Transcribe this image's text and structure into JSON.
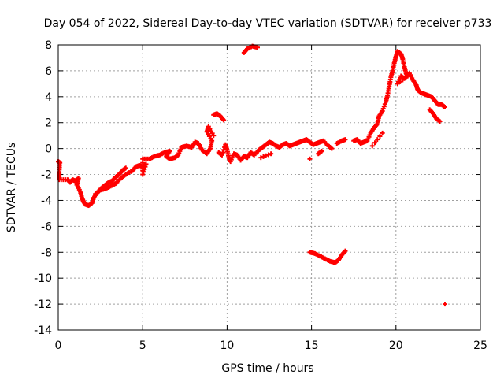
{
  "chart_data": {
    "type": "scatter",
    "title": "Day 054 of 2022, Sidereal Day-to-day VTEC variation (SDTVAR) for receiver p733",
    "xlabel": "GPS time / hours",
    "ylabel": "SDTVAR / TECUs",
    "xlim": [
      0,
      25
    ],
    "ylim": [
      -14,
      8
    ],
    "xticks": [
      0,
      5,
      10,
      15,
      20,
      25
    ],
    "yticks": [
      -14,
      -12,
      -10,
      -8,
      -6,
      -4,
      -2,
      0,
      2,
      4,
      6,
      8
    ],
    "grid": true,
    "marker": "plus",
    "colors": {
      "series": "#ff0000",
      "grid": "#a0a0a0",
      "axis": "#000000"
    },
    "series": [
      {
        "name": "SDTVAR",
        "points": [
          [
            0.0,
            -1.0
          ],
          [
            0.1,
            -1.1
          ],
          [
            0.05,
            -1.8
          ],
          [
            0.05,
            -2.2
          ],
          [
            0.05,
            -2.4
          ],
          [
            0.55,
            -2.4
          ],
          [
            0.7,
            -2.6
          ],
          [
            0.85,
            -2.4
          ],
          [
            1.0,
            -2.5
          ],
          [
            1.2,
            -2.3
          ],
          [
            1.1,
            -2.8
          ],
          [
            1.3,
            -3.3
          ],
          [
            1.4,
            -3.8
          ],
          [
            1.5,
            -4.1
          ],
          [
            1.6,
            -4.3
          ],
          [
            1.8,
            -4.4
          ],
          [
            2.0,
            -4.2
          ],
          [
            2.1,
            -3.8
          ],
          [
            2.3,
            -3.4
          ],
          [
            2.6,
            -3.0
          ],
          [
            2.8,
            -2.8
          ],
          [
            3.0,
            -2.6
          ],
          [
            3.2,
            -2.5
          ],
          [
            3.4,
            -2.2
          ],
          [
            3.6,
            -2.0
          ],
          [
            3.8,
            -1.7
          ],
          [
            4.0,
            -1.5
          ],
          [
            2.2,
            -3.5
          ],
          [
            2.5,
            -3.2
          ],
          [
            2.8,
            -3.1
          ],
          [
            3.1,
            -2.9
          ],
          [
            3.4,
            -2.7
          ],
          [
            3.7,
            -2.3
          ],
          [
            4.0,
            -2.0
          ],
          [
            4.4,
            -1.7
          ],
          [
            4.6,
            -1.4
          ],
          [
            4.8,
            -1.3
          ],
          [
            5.0,
            -1.4
          ],
          [
            5.2,
            -1.2
          ],
          [
            5.0,
            -2.0
          ],
          [
            5.0,
            -0.8
          ],
          [
            5.4,
            -0.8
          ],
          [
            5.7,
            -0.6
          ],
          [
            6.0,
            -0.5
          ],
          [
            6.3,
            -0.3
          ],
          [
            6.6,
            -0.2
          ],
          [
            6.4,
            -0.6
          ],
          [
            6.6,
            -0.8
          ],
          [
            6.9,
            -0.7
          ],
          [
            7.1,
            -0.5
          ],
          [
            7.3,
            0.1
          ],
          [
            7.6,
            0.2
          ],
          [
            7.9,
            0.1
          ],
          [
            8.1,
            0.5
          ],
          [
            8.3,
            0.4
          ],
          [
            8.5,
            -0.1
          ],
          [
            8.8,
            -0.4
          ],
          [
            9.0,
            0.0
          ],
          [
            9.1,
            0.6
          ],
          [
            8.8,
            1.3
          ],
          [
            8.9,
            1.7
          ],
          [
            9.2,
            1.0
          ],
          [
            9.5,
            -0.3
          ],
          [
            9.7,
            -0.5
          ],
          [
            9.9,
            0.3
          ],
          [
            10.0,
            -0.1
          ],
          [
            10.1,
            -0.7
          ],
          [
            10.2,
            -1.0
          ],
          [
            10.4,
            -0.4
          ],
          [
            10.6,
            -0.5
          ],
          [
            10.8,
            -0.9
          ],
          [
            11.0,
            -0.6
          ],
          [
            11.2,
            -0.7
          ],
          [
            11.4,
            -0.3
          ],
          [
            11.6,
            -0.5
          ],
          [
            11.9,
            -0.1
          ],
          [
            12.1,
            0.1
          ],
          [
            12.3,
            0.3
          ],
          [
            12.5,
            0.5
          ],
          [
            12.7,
            0.4
          ],
          [
            12.9,
            0.2
          ],
          [
            13.1,
            0.1
          ],
          [
            13.3,
            0.3
          ],
          [
            13.5,
            0.4
          ],
          [
            13.7,
            0.2
          ],
          [
            13.9,
            0.3
          ],
          [
            14.1,
            0.4
          ],
          [
            14.3,
            0.5
          ],
          [
            14.5,
            0.6
          ],
          [
            14.7,
            0.7
          ],
          [
            14.9,
            0.5
          ],
          [
            15.1,
            0.3
          ],
          [
            15.3,
            0.4
          ],
          [
            15.5,
            0.5
          ],
          [
            15.7,
            0.6
          ],
          [
            16.0,
            0.2
          ],
          [
            16.2,
            0.0
          ],
          [
            15.4,
            -0.4
          ],
          [
            15.6,
            -0.2
          ],
          [
            16.5,
            0.4
          ],
          [
            16.8,
            0.6
          ],
          [
            17.0,
            0.7
          ],
          [
            14.9,
            -0.8
          ],
          [
            12.0,
            -0.7
          ],
          [
            12.6,
            -0.4
          ],
          [
            9.2,
            2.6
          ],
          [
            9.4,
            2.7
          ],
          [
            9.6,
            2.5
          ],
          [
            9.8,
            2.2
          ],
          [
            11.0,
            7.4
          ],
          [
            11.2,
            7.7
          ],
          [
            11.5,
            7.9
          ],
          [
            11.8,
            7.8
          ],
          [
            14.9,
            -8.0
          ],
          [
            15.2,
            -8.1
          ],
          [
            15.5,
            -8.3
          ],
          [
            15.8,
            -8.5
          ],
          [
            16.1,
            -8.7
          ],
          [
            16.4,
            -8.8
          ],
          [
            16.6,
            -8.6
          ],
          [
            16.8,
            -8.2
          ],
          [
            17.0,
            -7.9
          ],
          [
            17.5,
            0.6
          ],
          [
            17.7,
            0.7
          ],
          [
            17.9,
            0.4
          ],
          [
            18.1,
            0.5
          ],
          [
            18.3,
            0.6
          ],
          [
            18.5,
            1.2
          ],
          [
            18.7,
            1.6
          ],
          [
            18.9,
            1.9
          ],
          [
            19.0,
            2.5
          ],
          [
            19.2,
            2.9
          ],
          [
            19.4,
            3.6
          ],
          [
            19.5,
            4.1
          ],
          [
            19.6,
            4.8
          ],
          [
            19.7,
            5.5
          ],
          [
            19.8,
            6.0
          ],
          [
            19.9,
            6.6
          ],
          [
            20.0,
            7.1
          ],
          [
            20.1,
            7.5
          ],
          [
            20.3,
            7.3
          ],
          [
            20.4,
            6.9
          ],
          [
            20.5,
            6.3
          ],
          [
            20.6,
            5.8
          ],
          [
            20.7,
            5.6
          ],
          [
            20.1,
            5.0
          ],
          [
            20.3,
            5.6
          ],
          [
            20.5,
            5.4
          ],
          [
            20.8,
            5.8
          ],
          [
            21.0,
            5.3
          ],
          [
            21.2,
            4.9
          ],
          [
            21.3,
            4.5
          ],
          [
            21.5,
            4.3
          ],
          [
            21.7,
            4.2
          ],
          [
            21.9,
            4.1
          ],
          [
            22.1,
            4.0
          ],
          [
            22.3,
            3.7
          ],
          [
            22.5,
            3.4
          ],
          [
            22.7,
            3.4
          ],
          [
            22.9,
            3.2
          ],
          [
            22.0,
            3.0
          ],
          [
            22.2,
            2.7
          ],
          [
            22.4,
            2.3
          ],
          [
            22.6,
            2.1
          ],
          [
            18.6,
            0.2
          ],
          [
            19.2,
            1.2
          ],
          [
            22.9,
            -12.0
          ]
        ]
      }
    ]
  }
}
